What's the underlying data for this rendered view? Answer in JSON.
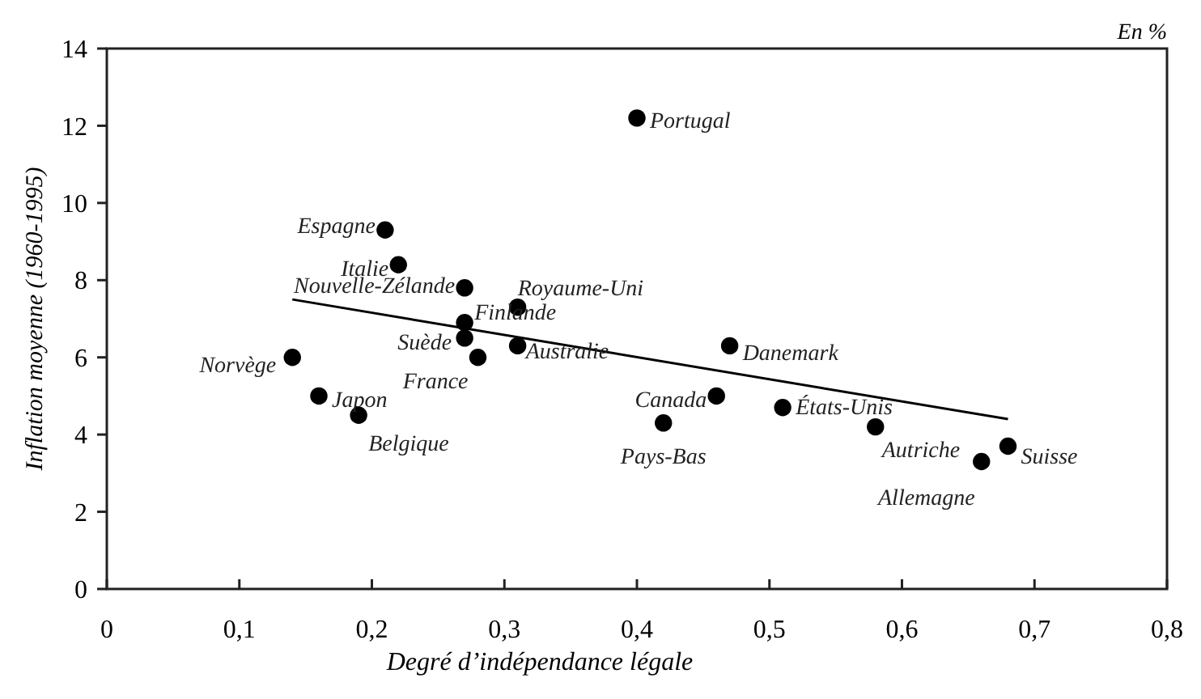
{
  "chart_data": {
    "type": "scatter",
    "xlabel": "Degré d’indépendance légale",
    "ylabel": "Inflation moyenne (1960-1995)",
    "xlim": [
      0,
      0.8
    ],
    "ylim": [
      0,
      14
    ],
    "xticks": [
      {
        "value": 0,
        "label": "0"
      },
      {
        "value": 0.1,
        "label": "0,1"
      },
      {
        "value": 0.2,
        "label": "0,2"
      },
      {
        "value": 0.3,
        "label": "0,3"
      },
      {
        "value": 0.4,
        "label": "0,4"
      },
      {
        "value": 0.5,
        "label": "0,5"
      },
      {
        "value": 0.6,
        "label": "0,6"
      },
      {
        "value": 0.7,
        "label": "0,7"
      },
      {
        "value": 0.8,
        "label": "0,8"
      }
    ],
    "yticks": [
      0,
      2,
      4,
      6,
      8,
      10,
      12,
      14
    ],
    "grid": false,
    "marker": "circle",
    "series": [
      {
        "color": "#000000",
        "x": [
          0.4,
          0.21,
          0.22,
          0.27,
          0.31,
          0.27,
          0.27,
          0.31,
          0.28,
          0.14,
          0.16,
          0.19,
          0.47,
          0.46,
          0.42,
          0.51,
          0.58,
          0.68,
          0.66
        ],
        "values": [
          12.2,
          9.3,
          8.4,
          7.8,
          7.3,
          6.9,
          6.5,
          6.3,
          6.0,
          6.0,
          5.0,
          4.5,
          6.3,
          5.0,
          4.3,
          4.7,
          4.2,
          3.7,
          3.3
        ]
      },
      {
        "type": "line",
        "color": "#000000",
        "line_style": "solid",
        "marker": "none",
        "x": [
          0.14,
          0.68
        ],
        "values": [
          7.5,
          4.4
        ]
      }
    ],
    "annotations": [
      "En %",
      {
        "text": "Portugal",
        "x": 0.4,
        "y": 12.2
      },
      {
        "text": "Espagne",
        "x": 0.21,
        "y": 9.3
      },
      {
        "text": "Italie",
        "x": 0.22,
        "y": 8.4
      },
      {
        "text": "Nouvelle-Zélande",
        "x": 0.27,
        "y": 7.8
      },
      {
        "text": "Royaume-Uni",
        "x": 0.31,
        "y": 7.3
      },
      {
        "text": "Finlande",
        "x": 0.27,
        "y": 6.9
      },
      {
        "text": "Suède",
        "x": 0.27,
        "y": 6.5
      },
      {
        "text": "Australie",
        "x": 0.31,
        "y": 6.3
      },
      {
        "text": "France",
        "x": 0.28,
        "y": 6.0
      },
      {
        "text": "Norvège",
        "x": 0.14,
        "y": 6.0
      },
      {
        "text": "Japon",
        "x": 0.16,
        "y": 5.0
      },
      {
        "text": "Belgique",
        "x": 0.19,
        "y": 4.5
      },
      {
        "text": "Danemark",
        "x": 0.47,
        "y": 6.3
      },
      {
        "text": "Canada",
        "x": 0.46,
        "y": 5.0
      },
      {
        "text": "Pays-Bas",
        "x": 0.42,
        "y": 4.3
      },
      {
        "text": "États-Unis",
        "x": 0.51,
        "y": 4.7
      },
      {
        "text": "Autriche",
        "x": 0.58,
        "y": 4.2
      },
      {
        "text": "Suisse",
        "x": 0.68,
        "y": 3.7
      },
      {
        "text": "Allemagne",
        "x": 0.66,
        "y": 3.3
      }
    ]
  }
}
